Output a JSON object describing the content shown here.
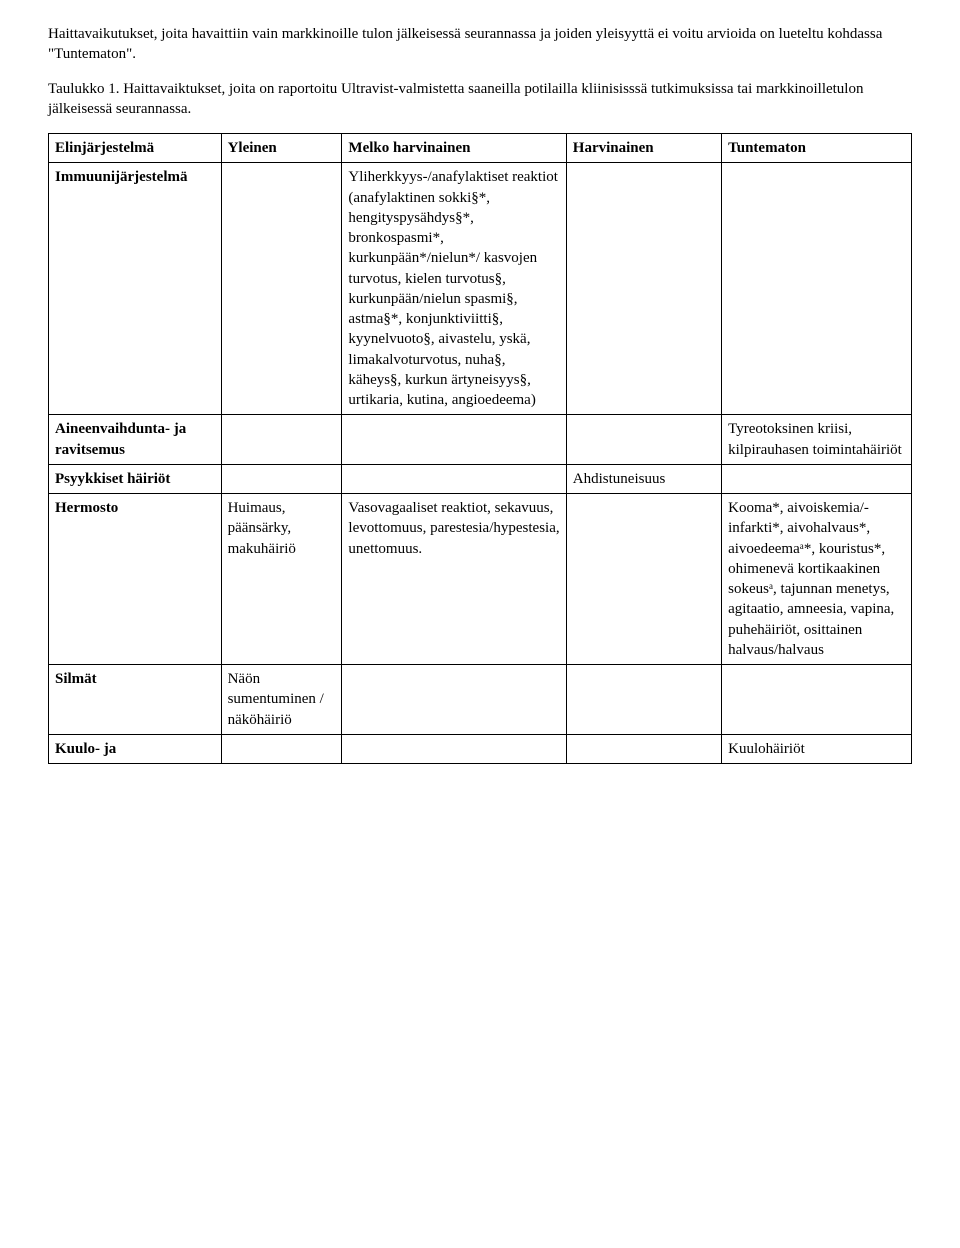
{
  "intro": {
    "para1": "Haittavaikutukset, joita havaittiin vain markkinoille tulon jälkeisessä seurannassa ja joiden yleisyyttä ei voitu arvioida on lueteltu kohdassa \"Tuntematon\".",
    "para2": "Taulukko 1. Haittavaiktukset, joita on raportoitu Ultravist-valmistetta saaneilla potilailla kliinisisssä tutkimuksissa tai markkinoilletulon jälkeisessä seurannassa."
  },
  "header": {
    "c1": "Elinjärjestelmä",
    "c2": "Yleinen",
    "c3": "Melko harvinainen",
    "c4": "Harvinainen",
    "c5": "Tuntematon"
  },
  "rows": {
    "r1": {
      "c1": "Immuunijärjestelmä",
      "c2": "",
      "c3": "Yliherkkyys-/anafylaktiset reaktiot (anafylaktinen sokki§*, hengityspysähdys§*, bronkospasmi*, kurkunpään*/nielun*/ kasvojen turvotus, kielen turvotus§, kurkunpään/nielun spasmi§, astma§*, konjunktiviitti§, kyynelvuoto§, aivastelu, yskä, limakalvoturvotus, nuha§, käheys§, kurkun ärtyneisyys§, urtikaria, kutina, angioedeema)",
      "c4": "",
      "c5": ""
    },
    "r2": {
      "c1": "Aineenvaihdunta- ja ravitsemus",
      "c2": "",
      "c3": "",
      "c4": "",
      "c5": "Tyreotoksinen kriisi, kilpirauhasen toimintahäiriöt"
    },
    "r3": {
      "c1": "Psyykkiset häiriöt",
      "c2": "",
      "c3": "",
      "c4": "Ahdistuneisuus",
      "c5": ""
    },
    "r4": {
      "c1": "Hermosto",
      "c2": "Huimaus, päänsärky, makuhäiriö",
      "c3": "Vasovagaaliset reaktiot, sekavuus, levottomuus, parestesia/hypestesia, unettomuus.",
      "c4": "",
      "c5": "Kooma*, aivoiskemia/-infarkti*, aivohalvaus*, aivoedeemaᵃ*, kouristus*, ohimenevä kortikaakinen sokeusᵃ, tajunnan menetys, agitaatio, amneesia, vapina, puhehäiriöt, osittainen halvaus/halvaus"
    },
    "r5": {
      "c1": "Silmät",
      "c2": "Näön sumentuminen / näköhäiriö",
      "c3": "",
      "c4": "",
      "c5": ""
    },
    "r6": {
      "c1": "Kuulo- ja",
      "c2": "",
      "c3": "",
      "c4": "",
      "c5": "Kuulohäiriöt"
    }
  }
}
